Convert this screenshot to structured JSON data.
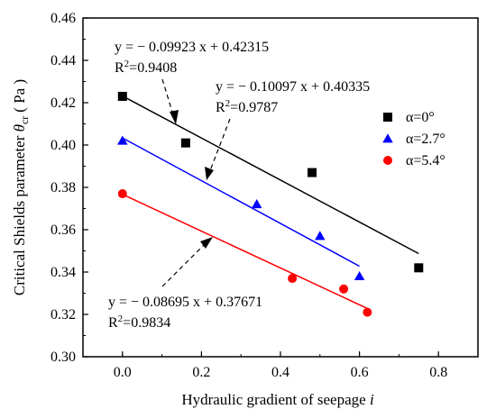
{
  "chart_data": {
    "type": "scatter",
    "title": "",
    "xlabel": {
      "text": "Hydraulic gradient of seepage ",
      "italic": "i"
    },
    "ylabel": {
      "prefix": "Critical Shields parameter ",
      "symbol": "θ",
      "sub": "cr",
      "unit": "( Pa )"
    },
    "xlim": [
      -0.1,
      0.9
    ],
    "ylim": [
      0.3,
      0.46
    ],
    "xticks": [
      0.0,
      0.2,
      0.4,
      0.6,
      0.8
    ],
    "xtick_labels": [
      "0.0",
      "0.2",
      "0.4",
      "0.6",
      "0.8"
    ],
    "yticks": [
      0.3,
      0.32,
      0.34,
      0.36,
      0.38,
      0.4,
      0.42,
      0.44,
      0.46
    ],
    "ytick_labels": [
      "0.30",
      "0.32",
      "0.34",
      "0.36",
      "0.38",
      "0.40",
      "0.42",
      "0.44",
      "0.46"
    ],
    "grid": false,
    "legend_position": "right",
    "series": [
      {
        "name": "α=0°",
        "marker": "square",
        "color": "#000000",
        "x": [
          0.0,
          0.16,
          0.48,
          0.75
        ],
        "y": [
          0.423,
          0.401,
          0.387,
          0.342
        ],
        "fit": {
          "slope": -0.09923,
          "intercept": 0.42315,
          "x_range": [
            0.0,
            0.75
          ]
        }
      },
      {
        "name": "α=2.7°",
        "marker": "triangle",
        "color": "#0000ff",
        "x": [
          0.0,
          0.34,
          0.5,
          0.6
        ],
        "y": [
          0.402,
          0.372,
          0.357,
          0.338
        ],
        "fit": {
          "slope": -0.10097,
          "intercept": 0.40335,
          "x_range": [
            0.0,
            0.6
          ]
        }
      },
      {
        "name": "α=5.4°",
        "marker": "circle",
        "color": "#ff0000",
        "x": [
          0.0,
          0.43,
          0.56,
          0.62
        ],
        "y": [
          0.377,
          0.337,
          0.332,
          0.321
        ],
        "fit": {
          "slope": -0.08695,
          "intercept": 0.37671,
          "x_range": [
            0.0,
            0.62
          ]
        }
      }
    ],
    "annotations": [
      {
        "eq": "y = − 0.09923 x + 0.42315",
        "r2_label": "R",
        "r2_sup": "2",
        "r2_value": "=0.9408"
      },
      {
        "eq": "y = − 0.10097 x + 0.40335",
        "r2_label": "R",
        "r2_sup": "2",
        "r2_value": "=0.9787"
      },
      {
        "eq": "y = − 0.08695 x + 0.37671",
        "r2_label": "R",
        "r2_sup": "2",
        "r2_value": "=0.9834"
      }
    ]
  }
}
